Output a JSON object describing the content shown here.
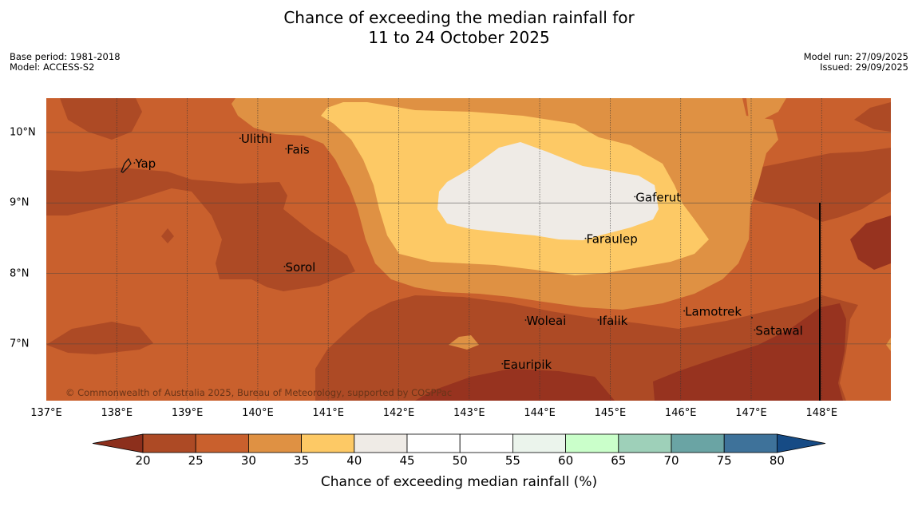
{
  "title": {
    "line1": "Chance of exceeding the median rainfall for",
    "line2": "11 to 24 October 2025"
  },
  "meta": {
    "base_period": "Base period: 1981-2018",
    "model": "Model: ACCESS-S2",
    "model_run": "Model run: 27/09/2025",
    "issued": "Issued: 29/09/2025"
  },
  "copyright": "© Commonwealth of Australia 2025, Bureau of Meteorology, supported by COSPPac",
  "lon_labels": [
    "137°E",
    "138°E",
    "139°E",
    "140°E",
    "141°E",
    "142°E",
    "143°E",
    "144°E",
    "145°E",
    "146°E",
    "147°E",
    "148°E"
  ],
  "lat_labels": [
    "10°N",
    "9°N",
    "8°N",
    "7°N"
  ],
  "places": [
    {
      "name": "Ulithi",
      "lon": 139.75,
      "lat": 9.85
    },
    {
      "name": "Fais",
      "lon": 140.4,
      "lat": 9.7
    },
    {
      "name": "Yap",
      "lon": 138.25,
      "lat": 9.5
    },
    {
      "name": "Gaferut",
      "lon": 145.35,
      "lat": 9.02
    },
    {
      "name": "Faraulep",
      "lon": 144.65,
      "lat": 8.43
    },
    {
      "name": "Sorol",
      "lon": 140.38,
      "lat": 8.03
    },
    {
      "name": "Woleai",
      "lon": 143.8,
      "lat": 7.27
    },
    {
      "name": "Ifalik",
      "lon": 144.83,
      "lat": 7.27
    },
    {
      "name": "Lamotrek",
      "lon": 146.05,
      "lat": 7.4
    },
    {
      "name": "Satawal",
      "lon": 147.05,
      "lat": 7.13
    },
    {
      "name": "Eauripik",
      "lon": 143.47,
      "lat": 6.65
    }
  ],
  "colorbar": {
    "title": "Chance of exceeding median rainfall (%)",
    "ticks": [
      "20",
      "25",
      "30",
      "35",
      "40",
      "45",
      "50",
      "55",
      "60",
      "65",
      "70",
      "75",
      "80"
    ],
    "colors": [
      "#ad4a25",
      "#c9602d",
      "#df9143",
      "#fdc965",
      "#efebe6",
      "#ffffff",
      "#ffffff",
      "#ebf4ec",
      "#caffca",
      "#9ed0b9",
      "#6aa4a4",
      "#3e729a"
    ],
    "low_color": "#8c2f1c",
    "high_color": "#164b85"
  },
  "colors": {
    "c20": "#ad4a25",
    "c15": "#97331f",
    "c25": "#c9602d",
    "c30": "#df9143",
    "c35": "#fdc965",
    "c40": "#efebe6"
  }
}
